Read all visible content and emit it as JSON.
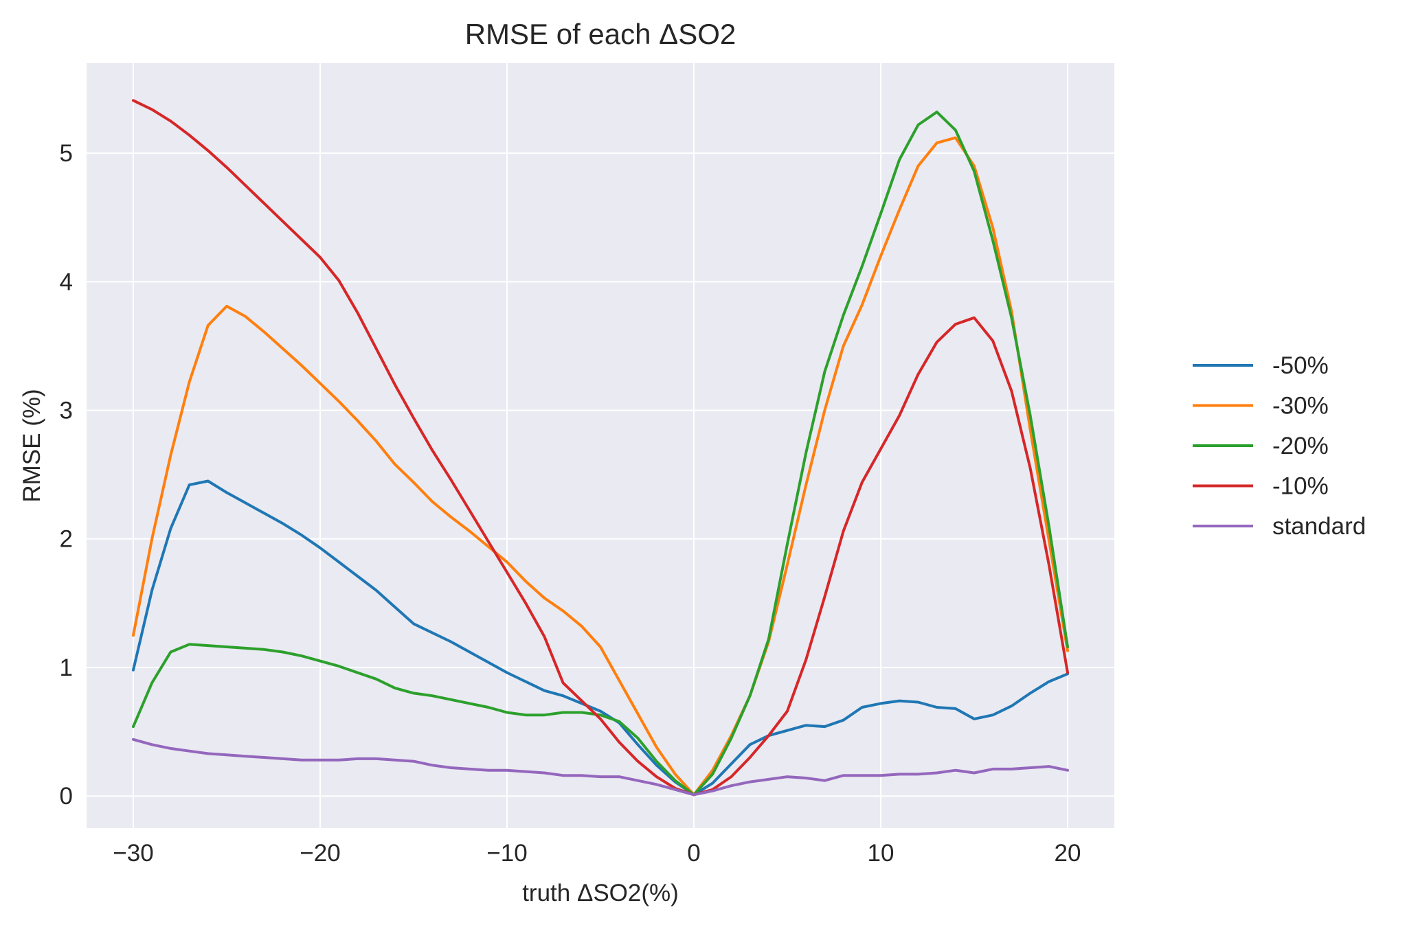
{
  "chart_data": {
    "type": "line",
    "title": "RMSE of each ΔSO2",
    "xlabel": "truth ΔSO2(%)",
    "ylabel": "RMSE (%)",
    "xlim": [
      -32.5,
      22.5
    ],
    "ylim": [
      -0.25,
      5.7
    ],
    "x_ticks": [
      -30,
      -20,
      -10,
      0,
      10,
      20
    ],
    "x_tick_labels": [
      "−30",
      "−20",
      "−10",
      "0",
      "10",
      "20"
    ],
    "y_ticks": [
      0,
      1,
      2,
      3,
      4,
      5
    ],
    "y_tick_labels": [
      "0",
      "1",
      "2",
      "3",
      "4",
      "5"
    ],
    "grid": true,
    "background": "#eaeaf2",
    "legend_placement": "right (outside plot)",
    "x": [
      -30,
      -29,
      -28,
      -27,
      -26,
      -25,
      -24,
      -23,
      -22,
      -21,
      -20,
      -19,
      -18,
      -17,
      -16,
      -15,
      -14,
      -13,
      -12,
      -11,
      -10,
      -9,
      -8,
      -7,
      -6,
      -5,
      -4,
      -3,
      -2,
      -1,
      0,
      1,
      2,
      3,
      4,
      5,
      6,
      7,
      8,
      9,
      10,
      11,
      12,
      13,
      14,
      15,
      16,
      17,
      18,
      19,
      20
    ],
    "series": [
      {
        "name": "-50%",
        "color": "#1f77b4",
        "values": [
          0.98,
          1.6,
          2.08,
          2.42,
          2.45,
          2.36,
          2.28,
          2.2,
          2.12,
          2.03,
          1.93,
          1.82,
          1.71,
          1.6,
          1.47,
          1.34,
          1.27,
          1.2,
          1.12,
          1.04,
          0.96,
          0.89,
          0.82,
          0.78,
          0.72,
          0.66,
          0.57,
          0.4,
          0.24,
          0.11,
          0.01,
          0.1,
          0.25,
          0.4,
          0.47,
          0.51,
          0.55,
          0.54,
          0.59,
          0.69,
          0.72,
          0.74,
          0.73,
          0.69,
          0.68,
          0.6,
          0.63,
          0.7,
          0.8,
          0.89,
          0.95
        ]
      },
      {
        "name": "-30%",
        "color": "#ff7f0e",
        "values": [
          1.25,
          2.0,
          2.65,
          3.22,
          3.66,
          3.81,
          3.73,
          3.61,
          3.48,
          3.35,
          3.21,
          3.07,
          2.92,
          2.76,
          2.58,
          2.44,
          2.29,
          2.17,
          2.06,
          1.94,
          1.82,
          1.67,
          1.54,
          1.44,
          1.32,
          1.16,
          0.9,
          0.64,
          0.38,
          0.17,
          0.01,
          0.2,
          0.47,
          0.78,
          1.2,
          1.8,
          2.42,
          3.0,
          3.5,
          3.82,
          4.2,
          4.56,
          4.9,
          5.08,
          5.12,
          4.9,
          4.42,
          3.77,
          2.85,
          1.99,
          1.13
        ]
      },
      {
        "name": "-20%",
        "color": "#2ca02c",
        "values": [
          0.54,
          0.88,
          1.12,
          1.18,
          1.17,
          1.16,
          1.15,
          1.14,
          1.12,
          1.09,
          1.05,
          1.01,
          0.96,
          0.91,
          0.84,
          0.8,
          0.78,
          0.75,
          0.72,
          0.69,
          0.65,
          0.63,
          0.63,
          0.65,
          0.65,
          0.63,
          0.58,
          0.45,
          0.27,
          0.12,
          0.01,
          0.17,
          0.45,
          0.78,
          1.22,
          1.96,
          2.67,
          3.3,
          3.74,
          4.12,
          4.53,
          4.95,
          5.22,
          5.32,
          5.18,
          4.86,
          4.32,
          3.72,
          2.96,
          2.1,
          1.16
        ]
      },
      {
        "name": "-10%",
        "color": "#d62728",
        "values": [
          5.41,
          5.34,
          5.25,
          5.14,
          5.02,
          4.89,
          4.75,
          4.61,
          4.47,
          4.33,
          4.19,
          4.01,
          3.76,
          3.48,
          3.2,
          2.94,
          2.69,
          2.46,
          2.22,
          1.98,
          1.74,
          1.5,
          1.24,
          0.88,
          0.74,
          0.6,
          0.42,
          0.27,
          0.15,
          0.06,
          0.01,
          0.05,
          0.15,
          0.3,
          0.47,
          0.66,
          1.06,
          1.55,
          2.06,
          2.44,
          2.7,
          2.96,
          3.28,
          3.53,
          3.67,
          3.72,
          3.54,
          3.15,
          2.55,
          1.8,
          0.96
        ]
      },
      {
        "name": "standard",
        "color": "#9467bd",
        "values": [
          0.44,
          0.4,
          0.37,
          0.35,
          0.33,
          0.32,
          0.31,
          0.3,
          0.29,
          0.28,
          0.28,
          0.28,
          0.29,
          0.29,
          0.28,
          0.27,
          0.24,
          0.22,
          0.21,
          0.2,
          0.2,
          0.19,
          0.18,
          0.16,
          0.16,
          0.15,
          0.15,
          0.12,
          0.09,
          0.05,
          0.01,
          0.04,
          0.08,
          0.11,
          0.13,
          0.15,
          0.14,
          0.12,
          0.16,
          0.16,
          0.16,
          0.17,
          0.17,
          0.18,
          0.2,
          0.18,
          0.21,
          0.21,
          0.22,
          0.23,
          0.2
        ]
      }
    ]
  }
}
